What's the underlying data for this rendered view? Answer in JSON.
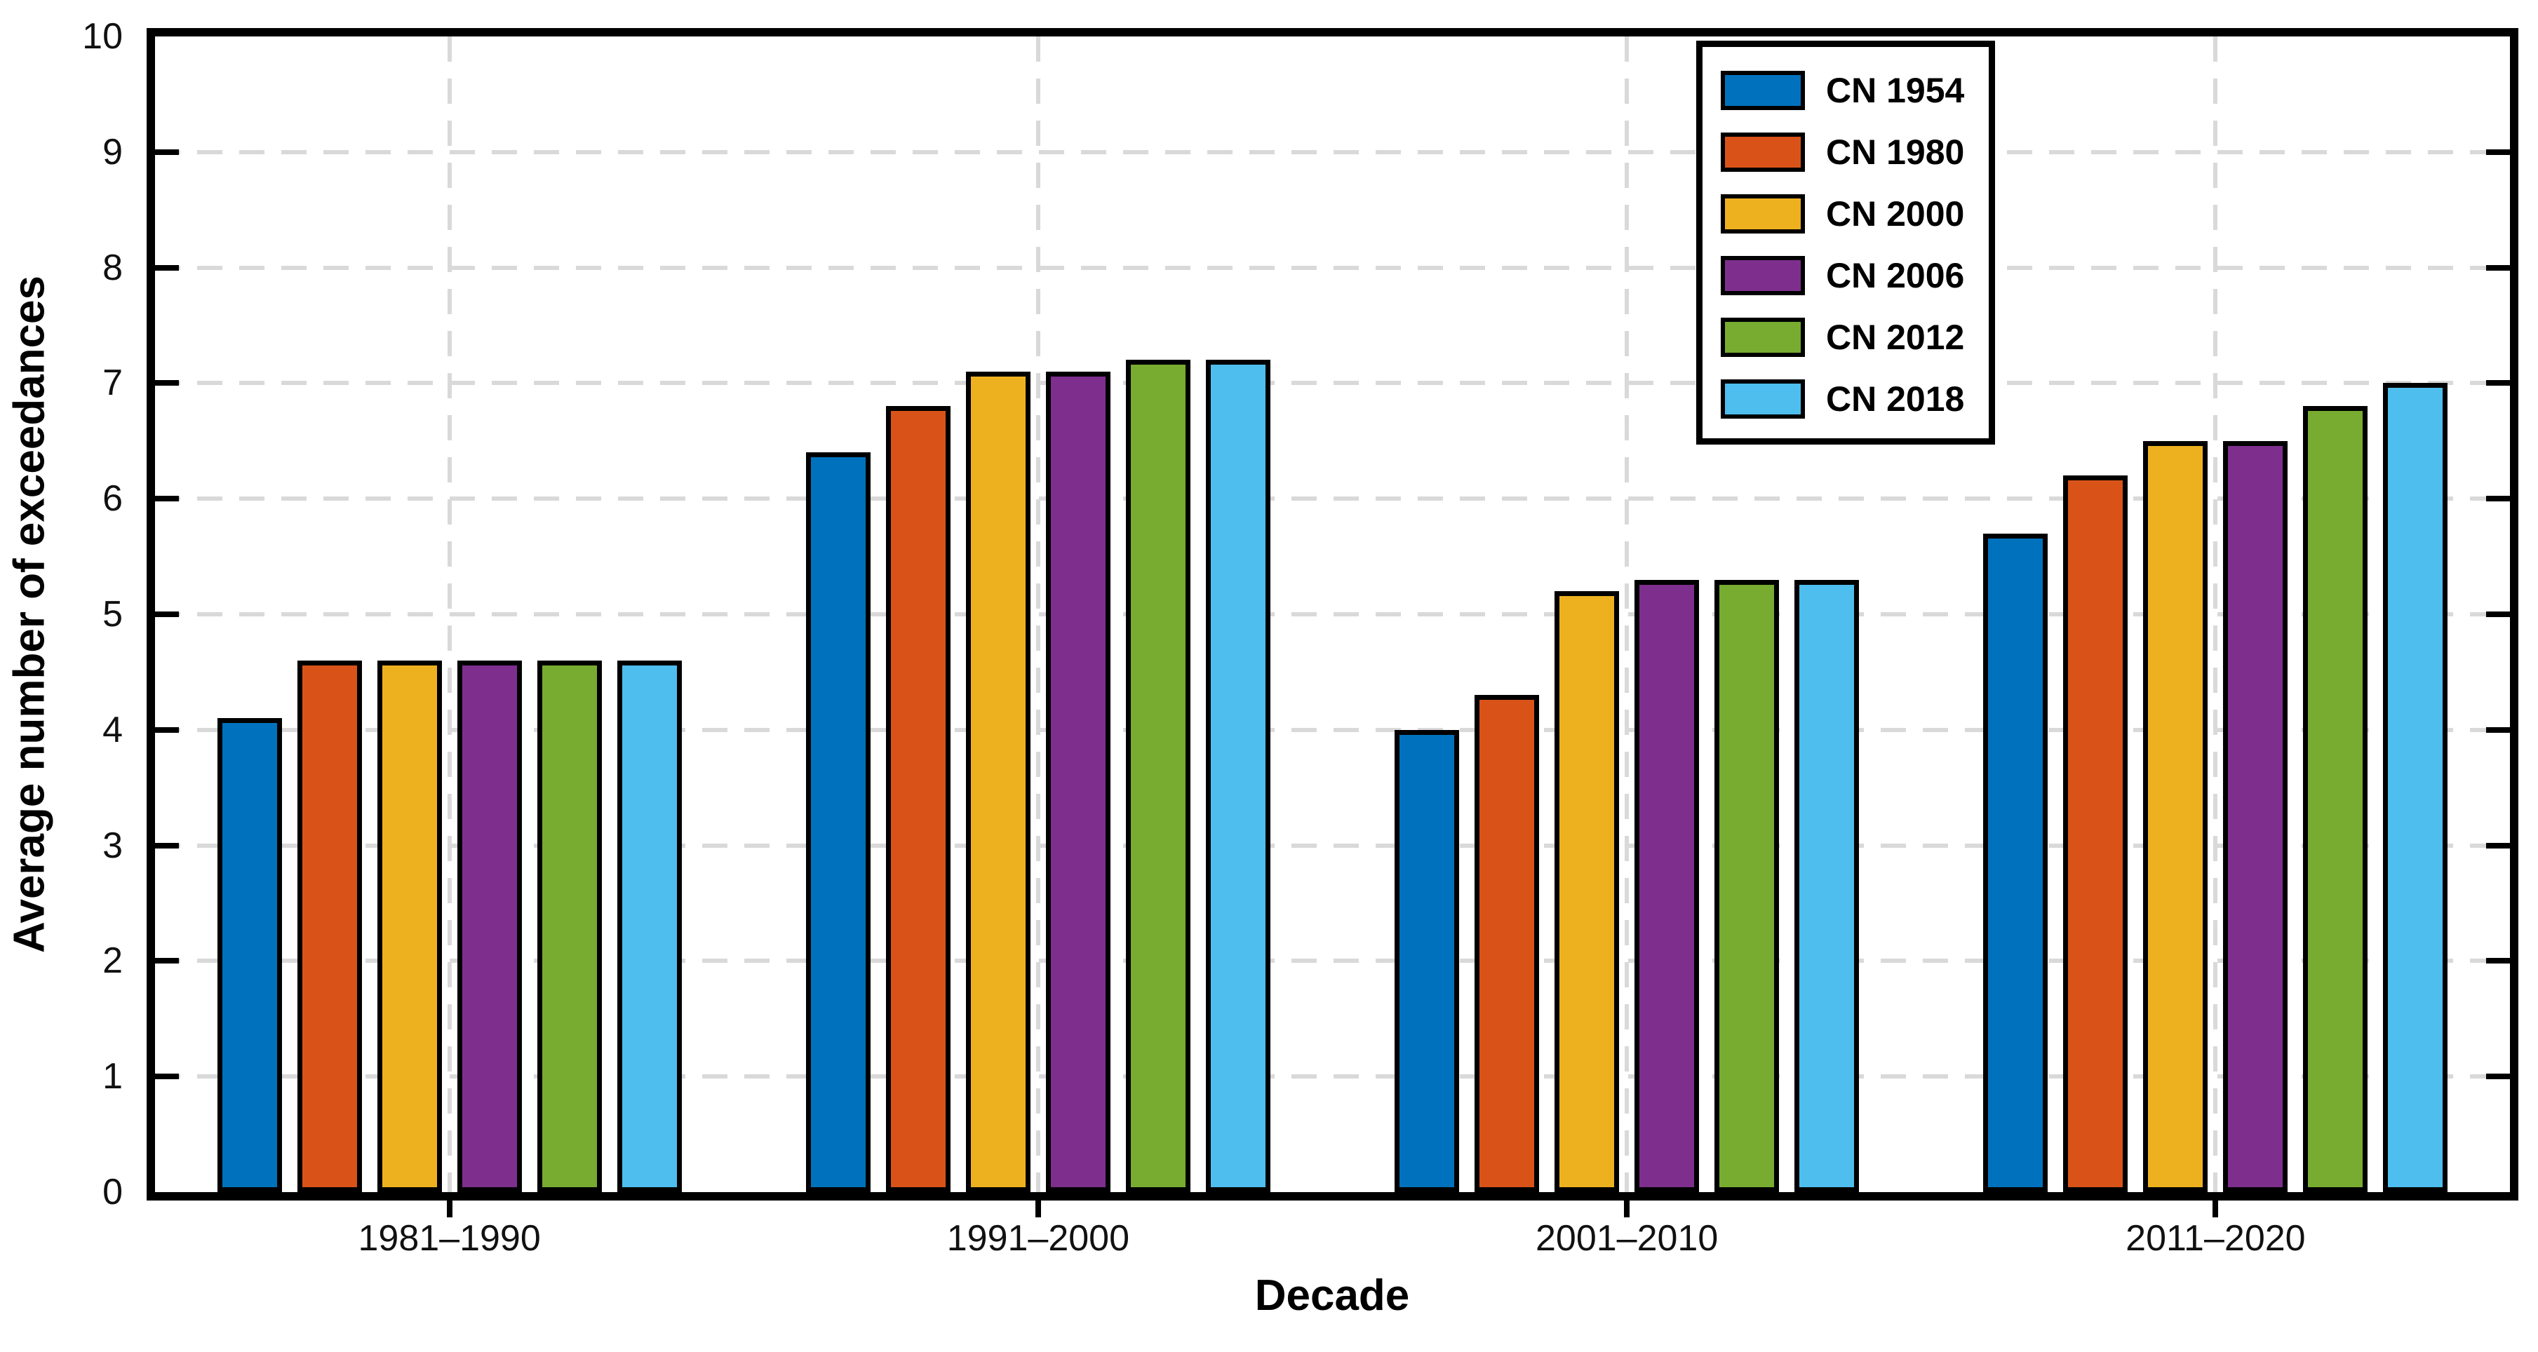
{
  "figure": {
    "background": "#ffffff",
    "text_color": "#111111",
    "axis_color": "#000000",
    "grid_color": "#d9d9d9"
  },
  "chart_data": {
    "type": "bar",
    "title": "",
    "xlabel": "Decade",
    "ylabel": "Average number of exceedances",
    "categories": [
      "1981–1990",
      "1991–2000",
      "2001–2010",
      "2011–2020"
    ],
    "series": [
      {
        "name": "CN 1954",
        "color": "#0072BD",
        "values": [
          4.1,
          6.4,
          4.0,
          5.7
        ]
      },
      {
        "name": "CN 1980",
        "color": "#D95319",
        "values": [
          4.6,
          6.8,
          4.3,
          6.2
        ]
      },
      {
        "name": "CN 2000",
        "color": "#EDB120",
        "values": [
          4.6,
          7.1,
          5.2,
          6.5
        ]
      },
      {
        "name": "CN 2006",
        "color": "#7E2F8E",
        "values": [
          4.6,
          7.1,
          5.3,
          6.5
        ]
      },
      {
        "name": "CN 2012",
        "color": "#77AC30",
        "values": [
          4.6,
          7.2,
          5.3,
          6.8
        ]
      },
      {
        "name": "CN 2018",
        "color": "#4DBEEE",
        "values": [
          4.6,
          7.2,
          5.3,
          7.0
        ]
      }
    ],
    "ylim": [
      0,
      10
    ],
    "yticks": [
      0,
      1,
      2,
      3,
      4,
      5,
      6,
      7,
      8,
      9,
      10
    ],
    "grid": "dashed",
    "grid_on": true,
    "legend_position": "top-right-inside",
    "bar_edge_color": "#000000"
  }
}
